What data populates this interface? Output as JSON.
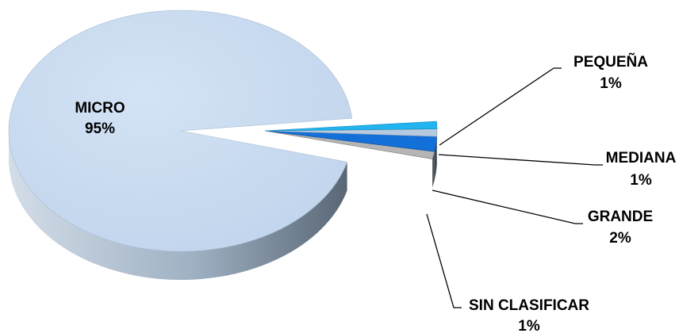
{
  "chart_data": {
    "type": "pie",
    "style": "3d-exploded",
    "title": "",
    "slices": [
      {
        "label": "MICRO",
        "value": 95,
        "value_label": "95%",
        "color": "#c6d9f1"
      },
      {
        "label": "PEQUEÑA",
        "value": 1,
        "value_label": "1%",
        "color": "#21b4ee"
      },
      {
        "label": "MEDIANA",
        "value": 1,
        "value_label": "1%",
        "color": "#b7c9de"
      },
      {
        "label": "GRANDE",
        "value": 2,
        "value_label": "2%",
        "color": "#1370d8"
      },
      {
        "label": "SIN CLASIFICAR",
        "value": 1,
        "value_label": "1%",
        "color": "#b5b5b5"
      }
    ],
    "legend": "none",
    "data_labels": "category-and-percent"
  }
}
